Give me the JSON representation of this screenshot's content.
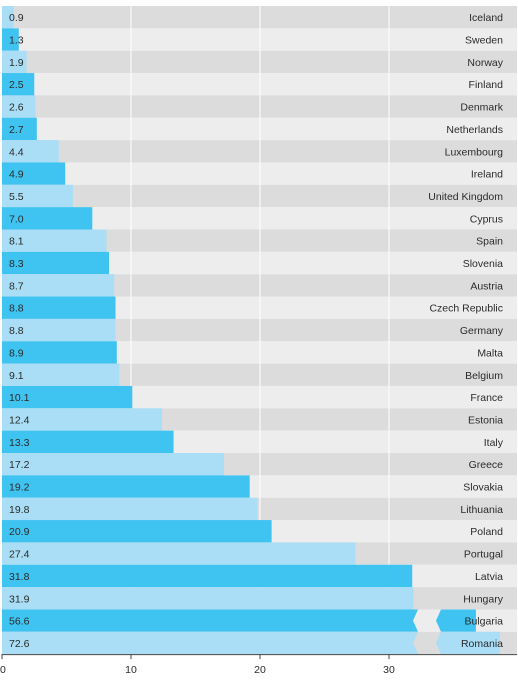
{
  "chart_data": {
    "type": "bar",
    "orientation": "horizontal",
    "categories": [
      "Iceland",
      "Sweden",
      "Norway",
      "Finland",
      "Denmark",
      "Netherlands",
      "Luxembourg",
      "Ireland",
      "United Kingdom",
      "Cyprus",
      "Spain",
      "Slovenia",
      "Austria",
      "Czech Republic",
      "Germany",
      "Malta",
      "Belgium",
      "France",
      "Estonia",
      "Italy",
      "Greece",
      "Slovakia",
      "Lithuania",
      "Poland",
      "Portugal",
      "Latvia",
      "Hungary",
      "Bulgaria",
      "Romania"
    ],
    "values": [
      0.9,
      1.3,
      1.9,
      2.5,
      2.6,
      2.7,
      4.4,
      4.9,
      5.5,
      7.0,
      8.1,
      8.3,
      8.7,
      8.8,
      8.8,
      8.9,
      9.1,
      10.1,
      12.4,
      13.3,
      17.2,
      19.2,
      19.8,
      20.9,
      27.4,
      31.8,
      31.9,
      56.6,
      72.6
    ],
    "value_labels": [
      "0.9",
      "1.3",
      "1.9",
      "2.5",
      "2.6",
      "2.7",
      "4.4",
      "4.9",
      "5.5",
      "7.0",
      "8.1",
      "8.3",
      "8.7",
      "8.8",
      "8.8",
      "8.9",
      "9.1",
      "10.1",
      "12.4",
      "13.3",
      "17.2",
      "19.2",
      "19.8",
      "20.9",
      "27.4",
      "31.8",
      "31.9",
      "56.6",
      "72.6"
    ],
    "highlighted": [
      false,
      true,
      false,
      true,
      false,
      true,
      false,
      true,
      false,
      true,
      false,
      true,
      false,
      true,
      false,
      true,
      false,
      true,
      false,
      true,
      false,
      true,
      false,
      true,
      false,
      true,
      false,
      true,
      false
    ],
    "broken_bars": [
      "Bulgaria",
      "Romania"
    ],
    "xlim": [
      0,
      40
    ],
    "xticks": [
      0,
      10,
      20,
      30
    ],
    "xtick_labels": [
      "0",
      "10",
      "20",
      "30"
    ],
    "grid": true,
    "title": "",
    "xlabel": "",
    "ylabel": ""
  },
  "colors": {
    "bar_highlight": "#3fc3f0",
    "bar_light": "#a9def6",
    "row_dark": "#dcdcdc",
    "row_light": "#ededed",
    "grid": "#ffffff",
    "text": "#2b2b2b"
  }
}
